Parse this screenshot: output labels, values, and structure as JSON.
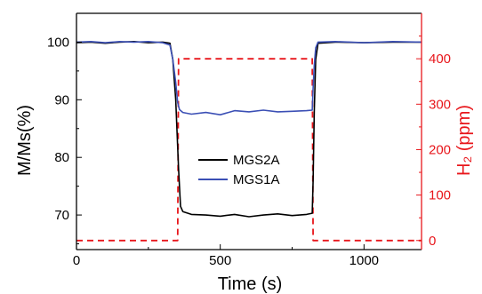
{
  "chart_data": {
    "type": "line",
    "xlabel": "Time (s)",
    "ylabel": "M/Ms(%)",
    "y2label": "H₂ (ppm)",
    "xlim": [
      0,
      1200
    ],
    "ylim": [
      64,
      105
    ],
    "y2lim": [
      -20,
      500
    ],
    "xticks": [
      0,
      500,
      1000
    ],
    "yticks": [
      70,
      80,
      90,
      100
    ],
    "y2ticks": [
      0,
      100,
      200,
      300,
      400
    ],
    "legend_position": "center",
    "grid": false,
    "colors": {
      "left_axis": "#000000",
      "right_axis": "#e8161b"
    },
    "series": [
      {
        "name": "MGS2A",
        "axis": "left",
        "color": "#000000",
        "x": [
          0,
          50,
          100,
          150,
          200,
          250,
          300,
          325,
          335,
          345,
          355,
          362,
          370,
          400,
          450,
          500,
          550,
          600,
          650,
          700,
          750,
          800,
          820,
          823,
          827,
          832,
          840,
          900,
          1000,
          1100,
          1200
        ],
        "y": [
          99.9,
          100.0,
          99.8,
          100.0,
          100.1,
          99.9,
          100.0,
          99.8,
          97.0,
          90.0,
          78.0,
          71.5,
          70.6,
          70.1,
          70.0,
          69.8,
          70.1,
          69.7,
          70.0,
          70.2,
          69.9,
          70.1,
          70.3,
          76.0,
          88.0,
          97.0,
          99.8,
          100.0,
          99.9,
          100.0,
          100.0
        ]
      },
      {
        "name": "MGS1A",
        "axis": "left",
        "color": "#3b4fb5",
        "x": [
          0,
          50,
          100,
          150,
          200,
          250,
          300,
          325,
          335,
          345,
          352,
          358,
          370,
          400,
          450,
          500,
          550,
          600,
          650,
          700,
          750,
          800,
          820,
          823,
          827,
          832,
          840,
          900,
          1000,
          1100,
          1200
        ],
        "y": [
          100.0,
          100.1,
          99.9,
          100.1,
          100.0,
          100.1,
          99.9,
          99.5,
          97.0,
          93.0,
          89.5,
          88.3,
          87.8,
          87.5,
          87.8,
          87.4,
          88.1,
          87.9,
          88.2,
          87.9,
          88.0,
          88.1,
          88.2,
          92.0,
          96.0,
          99.0,
          100.0,
          100.1,
          99.9,
          100.1,
          100.0
        ]
      },
      {
        "name": "",
        "axis": "right",
        "style": "dashed",
        "color": "#e8161b",
        "x": [
          0,
          352,
          355,
          820,
          823,
          1200
        ],
        "y": [
          0,
          0,
          400,
          400,
          0,
          0
        ]
      }
    ]
  }
}
